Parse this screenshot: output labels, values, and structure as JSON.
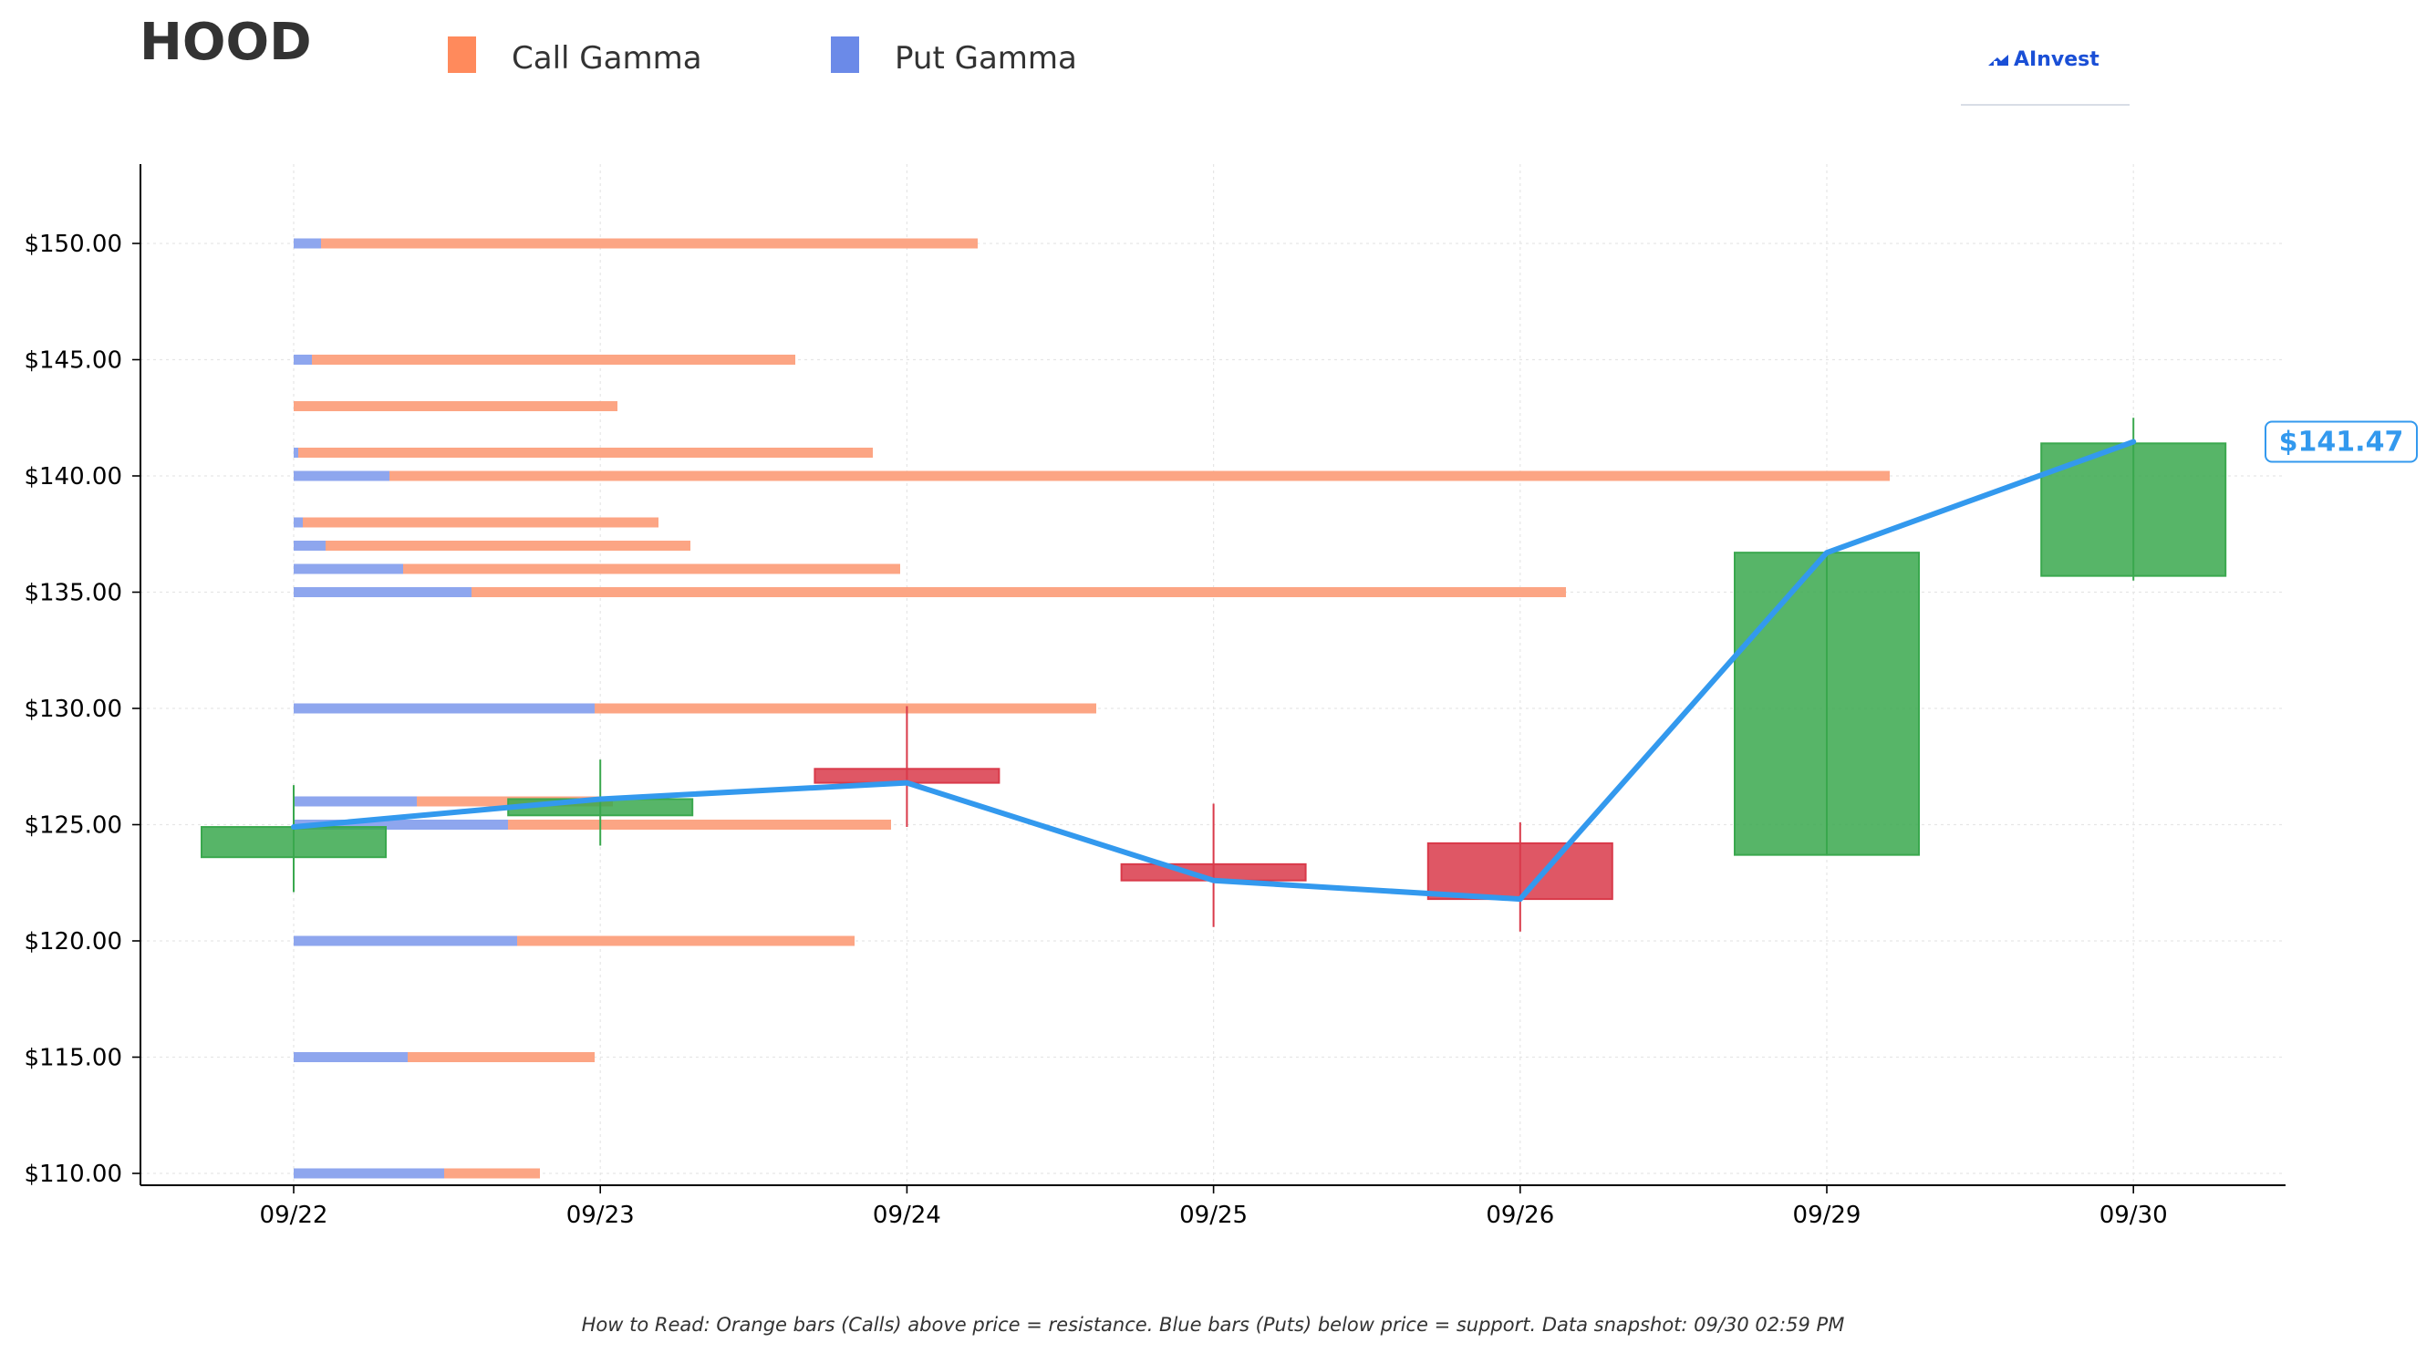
{
  "ticker": "HOOD",
  "legend": [
    {
      "label": "Call Gamma",
      "color": "#ff8a5c"
    },
    {
      "label": "Put Gamma",
      "color": "#6b8ae8"
    }
  ],
  "logo": {
    "text": "AInvest"
  },
  "footnote": "How to Read: Orange bars (Calls) above price = resistance. Blue bars (Puts) below price = support. Data snapshot: 09/30 02:59 PM",
  "current_price_label": "$141.47",
  "chart_data": {
    "type": "candlestick",
    "title": "",
    "xlabel": "",
    "ylabel": "",
    "categories": [
      "09/22",
      "09/23",
      "09/24",
      "09/25",
      "09/26",
      "09/29",
      "09/30"
    ],
    "ylim": [
      109.5,
      153.5
    ],
    "yticks": [
      {
        "value": 110,
        "label": "$110.00"
      },
      {
        "value": 115,
        "label": "$115.00"
      },
      {
        "value": 120,
        "label": "$120.00"
      },
      {
        "value": 125,
        "label": "$125.00"
      },
      {
        "value": 130,
        "label": "$130.00"
      },
      {
        "value": 135,
        "label": "$135.00"
      },
      {
        "value": 140,
        "label": "$140.00"
      },
      {
        "value": 145,
        "label": "$145.00"
      },
      {
        "value": 150,
        "label": "$150.00"
      }
    ],
    "grid": true,
    "candles": [
      {
        "date": "09/22",
        "open": 123.6,
        "close": 124.9,
        "high": 126.7,
        "low": 122.1
      },
      {
        "date": "09/23",
        "open": 125.4,
        "close": 126.1,
        "high": 127.8,
        "low": 124.1
      },
      {
        "date": "09/24",
        "open": 127.4,
        "close": 126.8,
        "high": 130.1,
        "low": 124.9
      },
      {
        "date": "09/25",
        "open": 123.3,
        "close": 122.6,
        "high": 125.9,
        "low": 120.6
      },
      {
        "date": "09/26",
        "open": 124.2,
        "close": 121.8,
        "high": 125.1,
        "low": 120.4
      },
      {
        "date": "09/29",
        "open": 123.7,
        "close": 136.7,
        "high": 136.7,
        "low": 123.7
      },
      {
        "date": "09/30",
        "open": 135.7,
        "close": 141.4,
        "high": 142.5,
        "low": 135.5
      }
    ],
    "price_line": {
      "name": "",
      "color": "#3399ee",
      "values": [
        124.9,
        126.1,
        126.8,
        122.6,
        121.8,
        136.7,
        141.47
      ]
    },
    "gamma_bars": [
      {
        "strike": 150,
        "put": 0.06,
        "call": 1.44
      },
      {
        "strike": 145,
        "put": 0.04,
        "call": 1.06
      },
      {
        "strike": 143,
        "put": 0.0,
        "call": 0.71
      },
      {
        "strike": 141,
        "put": 0.01,
        "call": 1.26
      },
      {
        "strike": 140,
        "put": 0.21,
        "call": 3.29
      },
      {
        "strike": 138,
        "put": 0.02,
        "call": 0.78
      },
      {
        "strike": 137,
        "put": 0.07,
        "call": 0.8
      },
      {
        "strike": 136,
        "put": 0.24,
        "call": 1.09
      },
      {
        "strike": 135,
        "put": 0.39,
        "call": 2.4
      },
      {
        "strike": 130,
        "put": 0.66,
        "call": 1.1
      },
      {
        "strike": 126,
        "put": 0.27,
        "call": 0.43
      },
      {
        "strike": 125,
        "put": 0.47,
        "call": 0.84
      },
      {
        "strike": 120,
        "put": 0.49,
        "call": 0.74
      },
      {
        "strike": 115,
        "put": 0.25,
        "call": 0.41
      },
      {
        "strike": 110,
        "put": 0.33,
        "call": 0.21
      }
    ],
    "colors": {
      "up": "#3aa84e",
      "down": "#d93a4a",
      "call_bar": "#fca584",
      "put_bar": "#8ea6ee",
      "axis": "#000000",
      "grid": "#e6e6e6"
    }
  }
}
